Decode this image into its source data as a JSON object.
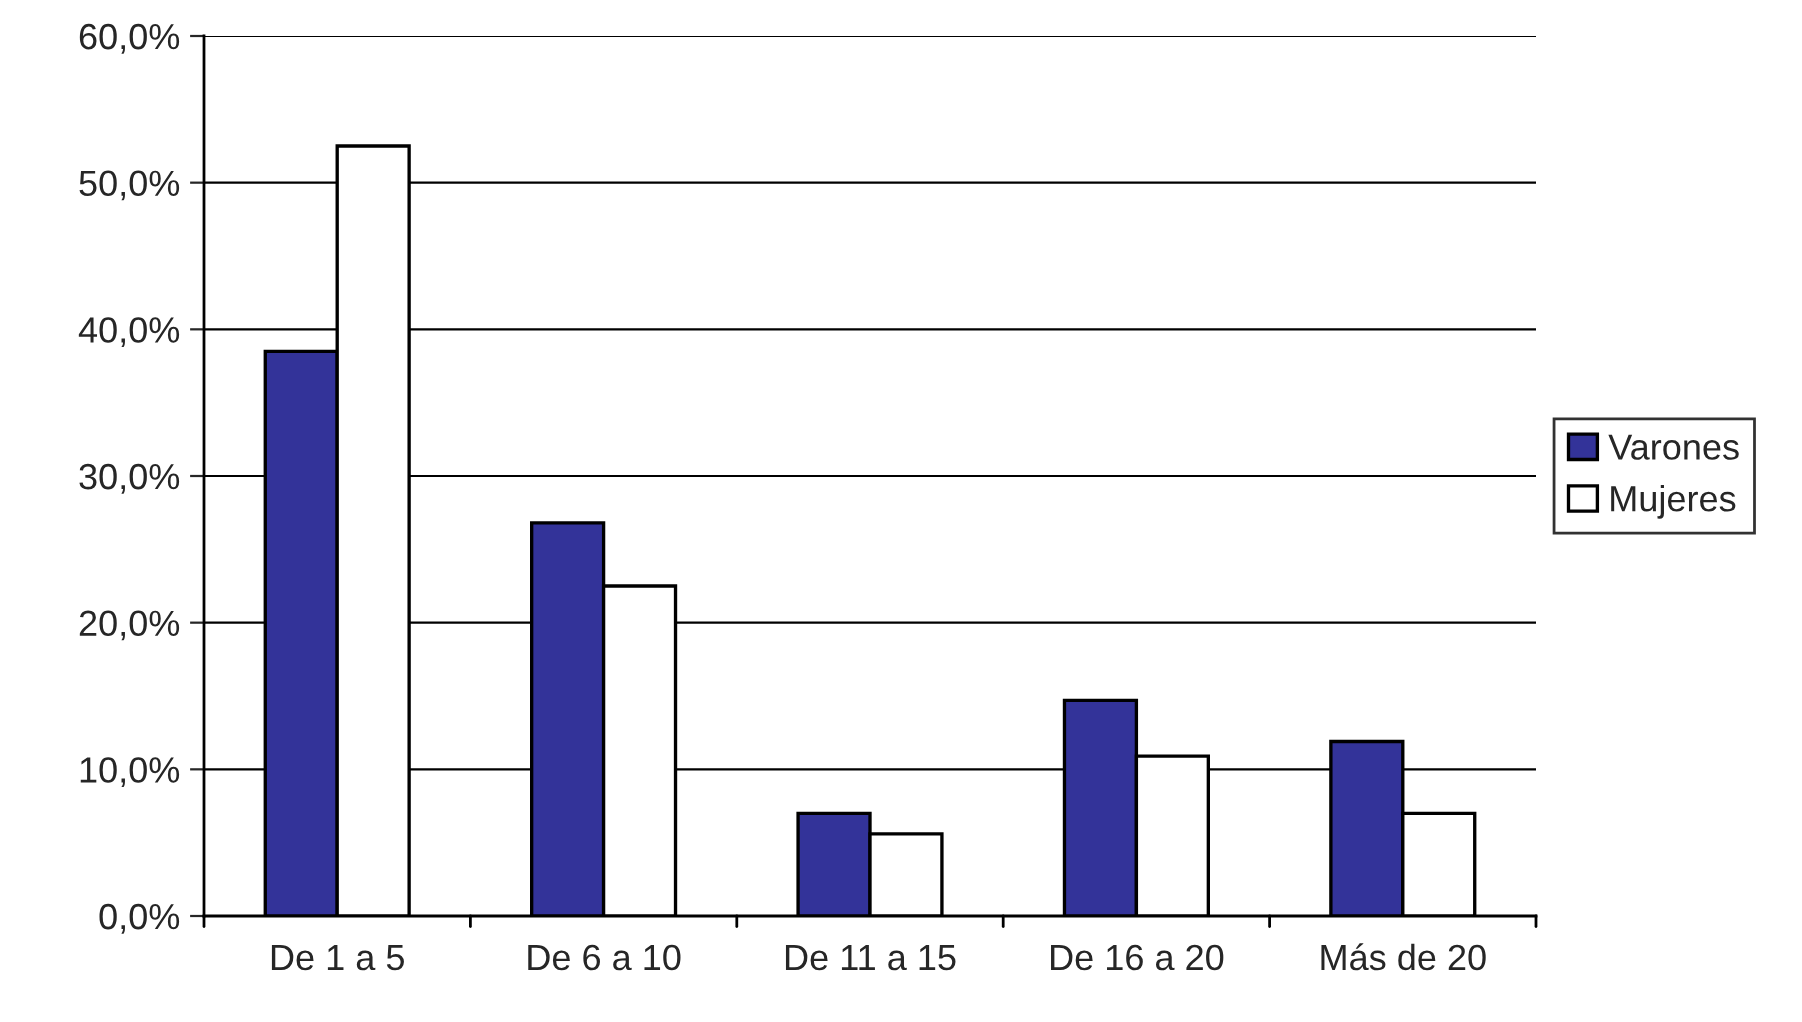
{
  "chart_data": {
    "type": "bar",
    "categories": [
      "De 1 a 5",
      "De 6 a 10",
      "De 11 a 15",
      "De 16 a 20",
      "Más de 20"
    ],
    "series": [
      {
        "name": "Varones",
        "color": "#333399",
        "values": [
          38.5,
          26.8,
          7.0,
          14.7,
          11.9
        ]
      },
      {
        "name": "Mujeres",
        "color": "#ffffff",
        "values": [
          52.5,
          22.5,
          5.6,
          10.9,
          7.0
        ]
      }
    ],
    "ylim": [
      0,
      60
    ],
    "yticks": [
      {
        "value": 0,
        "label": "0,0%"
      },
      {
        "value": 10,
        "label": "10,0%"
      },
      {
        "value": 20,
        "label": "20,0%"
      },
      {
        "value": 30,
        "label": "30,0%"
      },
      {
        "value": 40,
        "label": "40,0%"
      },
      {
        "value": 50,
        "label": "50,0%"
      },
      {
        "value": 60,
        "label": "60,0%"
      }
    ],
    "grid": "y",
    "legend": "right"
  }
}
